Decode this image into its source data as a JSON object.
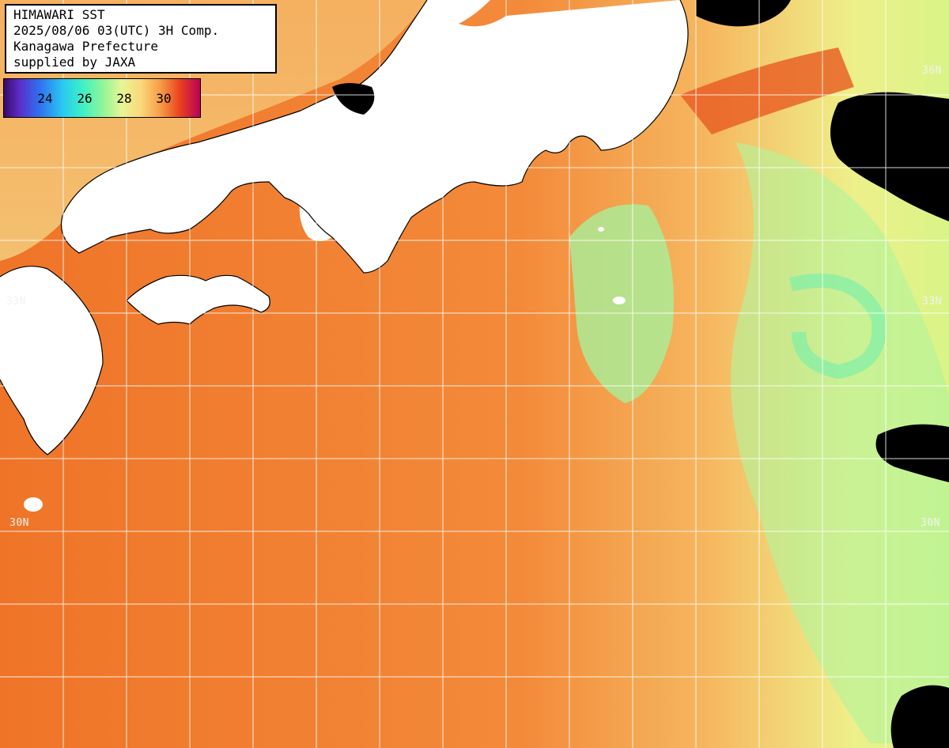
{
  "info": {
    "line1": "HIMAWARI SST",
    "line2": "2025/08/06 03(UTC) 3H Comp.",
    "line3": "Kanagawa Prefecture",
    "line4": "supplied by JAXA"
  },
  "legend": {
    "ticks": [
      "24",
      "26",
      "28",
      "30"
    ],
    "colors": [
      "#3a0a6a",
      "#2f6ff0",
      "#29c9f2",
      "#8cf59a",
      "#e8f595",
      "#fbd77a",
      "#f79a46",
      "#e8401e",
      "#b8005a"
    ]
  },
  "lat_labels": {
    "n36": "36N",
    "n33_right": "33N",
    "n33_left": "33N",
    "n30_left": "30N",
    "n30_right": "30N"
  },
  "colors": {
    "ocean_warm": "#f07a2c",
    "ocean_cool": "#eef08a",
    "ocean_cold": "#8ef29e",
    "land": "#ffffff",
    "cloud": "#000000",
    "grid": "#ffffff"
  }
}
